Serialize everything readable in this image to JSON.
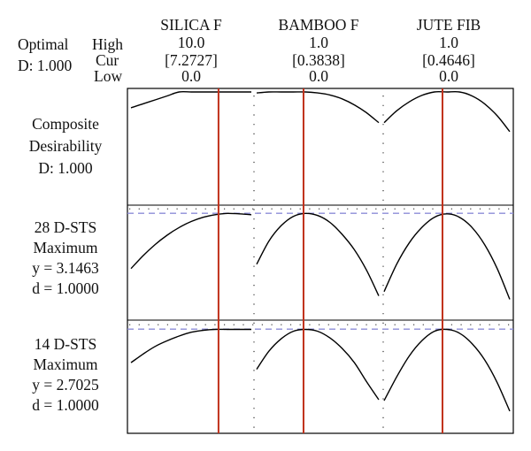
{
  "header": {
    "optimal_label": "Optimal",
    "d_label": "D: 1.000",
    "row_labels": [
      "High",
      "Cur",
      "Low"
    ]
  },
  "factors": [
    {
      "name": "SILICA F",
      "high": "10.0",
      "cur": "[7.2727]",
      "low": "0.0"
    },
    {
      "name": "BAMBOO F",
      "high": "1.0",
      "cur": "[0.3838]",
      "low": "0.0"
    },
    {
      "name": "JUTE FIB",
      "high": "1.0",
      "cur": "[0.4646]",
      "low": "0.0"
    }
  ],
  "rows": [
    {
      "lines": [
        "Composite",
        "Desirability",
        "D: 1.000"
      ]
    },
    {
      "lines": [
        "28 D-STS",
        "Maximum",
        "y = 3.1463",
        "d = 1.0000"
      ]
    },
    {
      "lines": [
        "14 D-STS",
        "Maximum",
        "y = 2.7025",
        "d = 1.0000"
      ]
    }
  ],
  "colors": {
    "curve": "#000000",
    "current_line": "#c0301a",
    "target_line": "#8c8cd8",
    "grid_dots": "#333333",
    "frame": "#000000"
  },
  "chart_data": {
    "type": "line",
    "x": {
      "SILICA F": [
        0,
        1,
        2,
        3,
        4,
        5,
        6,
        7,
        8,
        9,
        10
      ],
      "BAMBOO F": [
        0,
        0.1,
        0.2,
        0.3,
        0.4,
        0.5,
        0.6,
        0.7,
        0.8,
        0.9,
        1.0
      ],
      "JUTE FIB": [
        0,
        0.1,
        0.2,
        0.3,
        0.4,
        0.5,
        0.6,
        0.7,
        0.8,
        0.9,
        1.0
      ]
    },
    "current": {
      "SILICA F": 7.2727,
      "BAMBOO F": 0.3838,
      "JUTE FIB": 0.4646
    },
    "series": [
      {
        "name": "Composite Desirability",
        "ylim": [
          0,
          1
        ],
        "target": null,
        "values": [
          [
            0.68,
            0.76,
            0.84,
            0.92,
            1.0,
            1.0,
            1.0,
            1.0,
            1.0,
            1.0,
            1.0
          ],
          [
            0.98,
            1.0,
            1.0,
            1.0,
            1.0,
            0.98,
            0.94,
            0.86,
            0.74,
            0.58,
            0.38
          ],
          [
            0.38,
            0.62,
            0.8,
            0.93,
            1.0,
            1.0,
            1.0,
            0.92,
            0.76,
            0.52,
            0.2
          ]
        ]
      },
      {
        "name": "28 D-STS",
        "ylim": [
          2.0,
          3.2
        ],
        "target": 3.1463,
        "values": [
          [
            2.5,
            2.65,
            2.78,
            2.89,
            2.98,
            3.05,
            3.1,
            3.13,
            3.145,
            3.14,
            3.13
          ],
          [
            2.55,
            2.82,
            3.0,
            3.11,
            3.145,
            3.12,
            3.04,
            2.9,
            2.72,
            2.48,
            2.18
          ],
          [
            2.23,
            2.55,
            2.8,
            2.98,
            3.1,
            3.14,
            3.1,
            2.98,
            2.78,
            2.5,
            2.14
          ]
        ]
      },
      {
        "name": "14 D-STS",
        "ylim": [
          1.7,
          2.76
        ],
        "target": 2.7025,
        "values": [
          [
            2.35,
            2.44,
            2.52,
            2.58,
            2.63,
            2.67,
            2.69,
            2.7,
            2.7,
            2.7,
            2.7
          ],
          [
            2.28,
            2.47,
            2.6,
            2.68,
            2.7,
            2.68,
            2.61,
            2.5,
            2.35,
            2.15,
            1.96
          ],
          [
            1.95,
            2.2,
            2.42,
            2.58,
            2.68,
            2.7,
            2.66,
            2.55,
            2.38,
            2.14,
            1.84
          ]
        ]
      }
    ]
  }
}
